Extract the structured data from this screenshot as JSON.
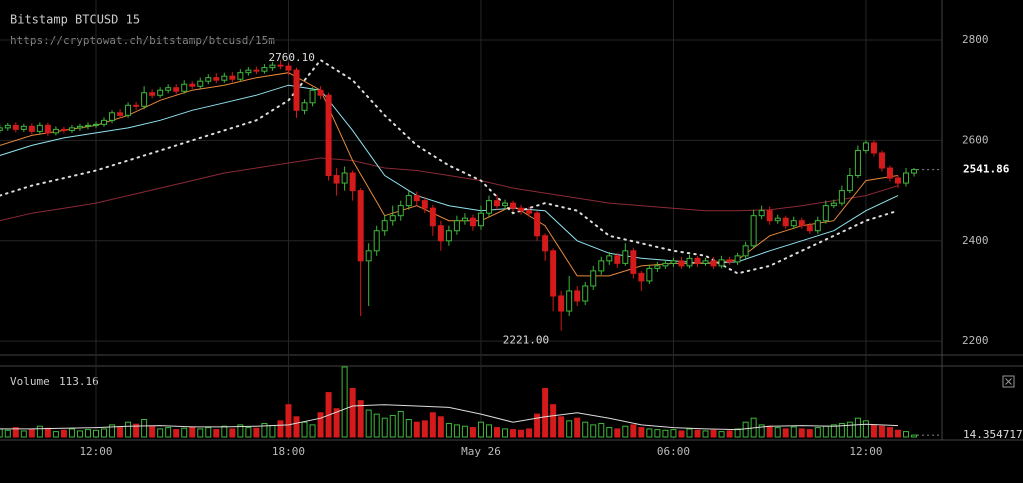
{
  "chart_data": {
    "type": "candlestick",
    "title": "Bitstamp BTCUSD 15",
    "subtitle": "https://cryptowat.ch/bitstamp/btcusd/15m",
    "x": [
      "09:00",
      "09:15",
      "09:30",
      "09:45",
      "10:00",
      "10:15",
      "10:30",
      "10:45",
      "11:00",
      "11:15",
      "11:30",
      "11:45",
      "12:00",
      "12:15",
      "12:30",
      "12:45",
      "13:00",
      "13:15",
      "13:30",
      "13:45",
      "14:00",
      "14:15",
      "14:30",
      "14:45",
      "15:00",
      "15:15",
      "15:30",
      "15:45",
      "16:00",
      "16:15",
      "16:30",
      "16:45",
      "17:00",
      "17:15",
      "17:30",
      "17:45",
      "18:00",
      "18:15",
      "18:30",
      "18:45",
      "19:00",
      "19:15",
      "19:30",
      "19:45",
      "20:00",
      "20:15",
      "20:30",
      "20:45",
      "21:00",
      "21:15",
      "21:30",
      "21:45",
      "22:00",
      "22:15",
      "22:30",
      "22:45",
      "23:00",
      "23:15",
      "23:30",
      "23:45",
      "00:00",
      "00:15",
      "00:30",
      "00:45",
      "01:00",
      "01:15",
      "01:30",
      "01:45",
      "02:00",
      "02:15",
      "02:30",
      "02:45",
      "03:00",
      "03:15",
      "03:30",
      "03:45",
      "04:00",
      "04:15",
      "04:30",
      "04:45",
      "05:00",
      "05:15",
      "05:30",
      "05:45",
      "06:00",
      "06:15",
      "06:30",
      "06:45",
      "07:00",
      "07:15",
      "07:30",
      "07:45",
      "08:00",
      "08:15",
      "08:30",
      "08:45",
      "09:00",
      "09:15",
      "09:30",
      "09:45",
      "10:00",
      "10:15",
      "10:30",
      "10:45",
      "11:00",
      "11:15",
      "11:30",
      "11:45",
      "12:00",
      "12:15",
      "12:30",
      "12:45",
      "13:00",
      "13:15",
      "13:30"
    ],
    "open": [
      2620,
      2625,
      2630,
      2622,
      2628,
      2618,
      2630,
      2615,
      2622,
      2620,
      2625,
      2628,
      2630,
      2632,
      2640,
      2655,
      2650,
      2670,
      2668,
      2695,
      2690,
      2700,
      2705,
      2698,
      2712,
      2708,
      2718,
      2725,
      2720,
      2728,
      2722,
      2735,
      2740,
      2738,
      2745,
      2750,
      2748,
      2740,
      2660,
      2675,
      2700,
      2690,
      2530,
      2515,
      2535,
      2500,
      2360,
      2380,
      2420,
      2440,
      2450,
      2470,
      2490,
      2480,
      2465,
      2430,
      2400,
      2420,
      2440,
      2445,
      2430,
      2455,
      2480,
      2470,
      2475,
      2465,
      2460,
      2455,
      2410,
      2380,
      2290,
      2260,
      2300,
      2280,
      2310,
      2340,
      2360,
      2370,
      2355,
      2380,
      2335,
      2320,
      2345,
      2350,
      2355,
      2360,
      2350,
      2365,
      2355,
      2360,
      2350,
      2362,
      2358,
      2370,
      2390,
      2450,
      2460,
      2440,
      2445,
      2430,
      2440,
      2430,
      2420,
      2440,
      2470,
      2475,
      2500,
      2530,
      2580,
      2595,
      2575,
      2545,
      2525,
      2515,
      2535
    ],
    "high": [
      2632,
      2635,
      2636,
      2633,
      2634,
      2636,
      2635,
      2628,
      2627,
      2631,
      2633,
      2636,
      2638,
      2646,
      2660,
      2662,
      2676,
      2677,
      2708,
      2702,
      2706,
      2712,
      2712,
      2720,
      2718,
      2725,
      2732,
      2734,
      2735,
      2736,
      2742,
      2746,
      2747,
      2752,
      2756,
      2760.1,
      2755,
      2745,
      2682,
      2706,
      2708,
      2695,
      2545,
      2548,
      2540,
      2505,
      2395,
      2430,
      2452,
      2470,
      2480,
      2500,
      2498,
      2488,
      2472,
      2440,
      2430,
      2450,
      2455,
      2452,
      2470,
      2490,
      2492,
      2482,
      2480,
      2472,
      2468,
      2460,
      2415,
      2385,
      2300,
      2330,
      2310,
      2318,
      2350,
      2368,
      2378,
      2376,
      2395,
      2386,
      2340,
      2352,
      2358,
      2362,
      2366,
      2368,
      2372,
      2370,
      2366,
      2368,
      2370,
      2368,
      2376,
      2398,
      2462,
      2470,
      2468,
      2452,
      2450,
      2448,
      2446,
      2436,
      2448,
      2480,
      2482,
      2510,
      2545,
      2590,
      2600,
      2600,
      2580,
      2550,
      2530,
      2545,
      2545
    ],
    "low": [
      2614,
      2619,
      2616,
      2617,
      2612,
      2613,
      2609,
      2610,
      2614,
      2615,
      2619,
      2622,
      2625,
      2627,
      2634,
      2644,
      2645,
      2661,
      2662,
      2684,
      2685,
      2694,
      2692,
      2693,
      2702,
      2703,
      2712,
      2714,
      2715,
      2716,
      2717,
      2729,
      2732,
      2733,
      2739,
      2742,
      2730,
      2645,
      2652,
      2668,
      2682,
      2520,
      2490,
      2500,
      2480,
      2250,
      2270,
      2370,
      2410,
      2430,
      2440,
      2462,
      2470,
      2455,
      2410,
      2380,
      2390,
      2412,
      2432,
      2420,
      2422,
      2448,
      2462,
      2463,
      2458,
      2452,
      2448,
      2400,
      2360,
      2260,
      2221,
      2250,
      2270,
      2272,
      2302,
      2332,
      2352,
      2346,
      2350,
      2325,
      2300,
      2314,
      2338,
      2344,
      2348,
      2344,
      2345,
      2348,
      2350,
      2344,
      2345,
      2352,
      2352,
      2364,
      2385,
      2443,
      2432,
      2434,
      2424,
      2424,
      2424,
      2414,
      2414,
      2434,
      2465,
      2470,
      2495,
      2525,
      2574,
      2568,
      2538,
      2518,
      2505,
      2508,
      2528
    ],
    "close": [
      2625,
      2630,
      2622,
      2628,
      2618,
      2630,
      2615,
      2622,
      2620,
      2625,
      2628,
      2630,
      2632,
      2640,
      2655,
      2650,
      2670,
      2668,
      2695,
      2690,
      2700,
      2705,
      2698,
      2712,
      2708,
      2718,
      2725,
      2720,
      2728,
      2722,
      2735,
      2740,
      2738,
      2745,
      2750,
      2748,
      2740,
      2660,
      2675,
      2700,
      2690,
      2530,
      2515,
      2535,
      2500,
      2360,
      2380,
      2420,
      2440,
      2450,
      2470,
      2490,
      2480,
      2465,
      2430,
      2400,
      2420,
      2440,
      2445,
      2430,
      2455,
      2480,
      2470,
      2475,
      2465,
      2460,
      2455,
      2410,
      2380,
      2290,
      2260,
      2300,
      2280,
      2310,
      2340,
      2360,
      2370,
      2355,
      2380,
      2335,
      2320,
      2345,
      2350,
      2355,
      2360,
      2350,
      2365,
      2355,
      2360,
      2350,
      2362,
      2358,
      2370,
      2390,
      2450,
      2460,
      2440,
      2445,
      2430,
      2440,
      2430,
      2420,
      2440,
      2470,
      2475,
      2500,
      2530,
      2580,
      2595,
      2575,
      2545,
      2525,
      2515,
      2535,
      2541.86
    ],
    "ylim": [
      2172.4,
      2879.8
    ],
    "yticks": [
      2200,
      2400,
      2600,
      2800
    ],
    "xticks": [
      "12:00",
      "18:00",
      {
        "value": "00:00",
        "label": "May 26"
      },
      "06:00",
      "12:00"
    ],
    "grid": true,
    "up_color": "#3fb83a",
    "down_color": "#d41a1a",
    "high_label": "2760.10",
    "low_label": "2221.00",
    "overlays": [
      {
        "color": "#8b2a35",
        "style": "solid",
        "x": [
          "09:00",
          "10:00",
          "11:00",
          "12:00",
          "13:00",
          "14:00",
          "15:00",
          "16:00",
          "17:00",
          "18:00",
          "19:00",
          "20:00",
          "21:00",
          "22:00",
          "23:00",
          "00:00",
          "01:00",
          "02:00",
          "03:00",
          "04:00",
          "05:00",
          "06:00",
          "07:00",
          "08:00",
          "09:00",
          "10:00",
          "11:00",
          "12:00",
          "13:00"
        ],
        "values": [
          2440,
          2455,
          2465,
          2475,
          2490,
          2505,
          2520,
          2535,
          2545,
          2555,
          2565,
          2560,
          2545,
          2540,
          2530,
          2520,
          2505,
          2495,
          2485,
          2475,
          2470,
          2465,
          2460,
          2460,
          2462,
          2470,
          2480,
          2490,
          2510
        ]
      },
      {
        "color": "#8fe3ef",
        "style": "solid",
        "x": [
          "09:00",
          "10:00",
          "11:00",
          "12:00",
          "13:00",
          "14:00",
          "15:00",
          "16:00",
          "17:00",
          "18:00",
          "19:00",
          "20:00",
          "21:00",
          "22:00",
          "23:00",
          "00:00",
          "01:00",
          "02:00",
          "03:00",
          "04:00",
          "05:00",
          "06:00",
          "07:00",
          "08:00",
          "09:00",
          "10:00",
          "11:00",
          "12:00",
          "13:00"
        ],
        "values": [
          2570,
          2590,
          2605,
          2615,
          2625,
          2640,
          2660,
          2675,
          2690,
          2710,
          2700,
          2620,
          2530,
          2490,
          2470,
          2460,
          2465,
          2460,
          2400,
          2375,
          2365,
          2360,
          2355,
          2358,
          2380,
          2400,
          2420,
          2460,
          2490
        ]
      },
      {
        "color": "#e8893a",
        "style": "solid",
        "x": [
          "09:00",
          "10:00",
          "11:00",
          "12:00",
          "13:00",
          "14:00",
          "15:00",
          "16:00",
          "17:00",
          "18:00",
          "19:00",
          "20:00",
          "21:00",
          "22:00",
          "23:00",
          "00:00",
          "01:00",
          "02:00",
          "03:00",
          "04:00",
          "05:00",
          "06:00",
          "07:00",
          "08:00",
          "09:00",
          "10:00",
          "11:00",
          "12:00",
          "13:00"
        ],
        "values": [
          2590,
          2610,
          2620,
          2630,
          2650,
          2680,
          2700,
          2710,
          2725,
          2735,
          2700,
          2560,
          2450,
          2470,
          2440,
          2440,
          2470,
          2430,
          2330,
          2330,
          2350,
          2355,
          2355,
          2362,
          2410,
          2430,
          2440,
          2520,
          2530
        ]
      },
      {
        "color": "#dddddd",
        "style": "dotted",
        "x": [
          "09:00",
          "10:00",
          "11:00",
          "12:00",
          "13:00",
          "14:00",
          "15:00",
          "16:00",
          "17:00",
          "18:00",
          "19:00",
          "20:00",
          "21:00",
          "22:00",
          "23:00",
          "00:00",
          "01:00",
          "02:00",
          "03:00",
          "04:00",
          "05:00",
          "06:00",
          "07:00",
          "08:00",
          "09:00",
          "10:00",
          "11:00",
          "12:00",
          "13:00"
        ],
        "values": [
          2490,
          2510,
          2525,
          2540,
          2560,
          2580,
          2600,
          2620,
          2640,
          2680,
          2760,
          2720,
          2650,
          2590,
          2550,
          2520,
          2455,
          2475,
          2460,
          2410,
          2395,
          2380,
          2370,
          2335,
          2350,
          2380,
          2410,
          2440,
          2460
        ]
      }
    ],
    "volume": {
      "title": "Volume",
      "ma_value": 113.16,
      "ylim": [
        0,
        520
      ],
      "values": [
        60,
        50,
        70,
        45,
        55,
        80,
        65,
        40,
        50,
        60,
        45,
        55,
        50,
        60,
        90,
        70,
        110,
        95,
        130,
        80,
        60,
        70,
        55,
        65,
        75,
        60,
        70,
        55,
        80,
        60,
        90,
        70,
        65,
        100,
        85,
        120,
        240,
        150,
        110,
        90,
        180,
        330,
        210,
        520,
        360,
        270,
        200,
        170,
        140,
        160,
        190,
        130,
        110,
        120,
        180,
        150,
        100,
        90,
        80,
        70,
        110,
        90,
        70,
        60,
        55,
        50,
        60,
        170,
        360,
        240,
        150,
        120,
        140,
        110,
        90,
        100,
        70,
        60,
        80,
        90,
        70,
        60,
        55,
        50,
        55,
        45,
        60,
        50,
        45,
        50,
        40,
        45,
        60,
        110,
        140,
        90,
        80,
        70,
        60,
        75,
        60,
        55,
        70,
        80,
        90,
        100,
        110,
        140,
        120,
        90,
        80,
        70,
        50,
        40,
        14.354717
      ],
      "ma": {
        "color": "#dddddd",
        "x": [
          "09:00",
          "10:00",
          "11:00",
          "12:00",
          "13:00",
          "14:00",
          "15:00",
          "16:00",
          "17:00",
          "18:00",
          "19:00",
          "20:00",
          "21:00",
          "22:00",
          "23:00",
          "00:00",
          "01:00",
          "02:00",
          "03:00",
          "04:00",
          "05:00",
          "06:00",
          "07:00",
          "08:00",
          "09:00",
          "10:00",
          "11:00",
          "12:00",
          "13:00"
        ],
        "values": [
          60,
          60,
          65,
          70,
          80,
          85,
          75,
          75,
          80,
          90,
          140,
          230,
          240,
          230,
          220,
          170,
          110,
          150,
          180,
          140,
          90,
          70,
          60,
          55,
          80,
          85,
          80,
          95,
          85
        ]
      }
    }
  }
}
